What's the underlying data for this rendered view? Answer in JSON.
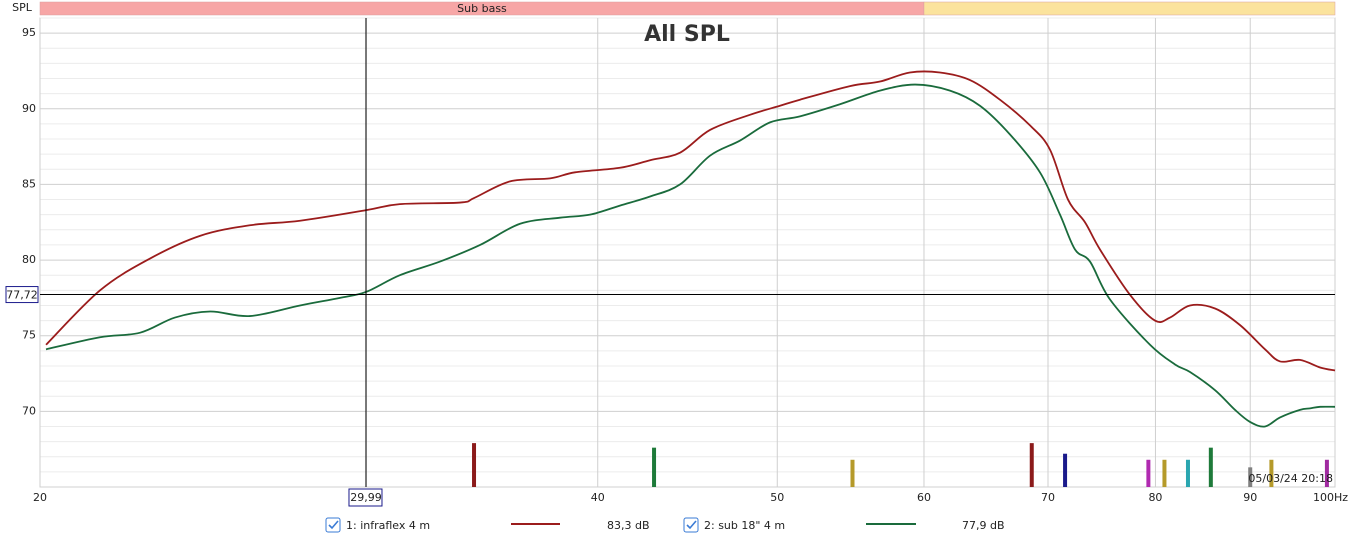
{
  "chart_data": {
    "type": "line",
    "title": "All SPL",
    "y_label": "SPL",
    "x_unit": "Hz",
    "log_x": true,
    "grid": true,
    "xlim": [
      20,
      100
    ],
    "xticks": [
      20,
      40,
      50,
      60,
      70,
      80,
      90,
      100
    ],
    "x_minor_ticks": [
      30
    ],
    "ylim": [
      65,
      96
    ],
    "yticks": [
      70,
      75,
      80,
      85,
      90,
      95
    ],
    "y_minor_ticks": [
      66,
      67,
      68,
      69,
      71,
      72,
      73,
      74,
      76,
      77,
      78,
      79,
      81,
      82,
      83,
      84,
      86,
      87,
      88,
      89,
      91,
      92,
      93,
      94,
      96
    ],
    "bands": [
      {
        "label": "Sub bass",
        "range": [
          20,
          60
        ],
        "color": "#f7a6a6"
      },
      {
        "range": [
          60,
          100
        ],
        "color": "#fbe39d"
      }
    ],
    "cursor": {
      "x": {
        "value": 29.99,
        "label": "29,99"
      },
      "y": {
        "value": 77.72,
        "label": "77,72"
      }
    },
    "series": [
      {
        "name": "1: infraflex 4 m",
        "color": "#9b1c1c",
        "cursor_value": 83.3,
        "cursor_label": "83,3 dB",
        "x": [
          20.15,
          21.55,
          22.93,
          24.4,
          25.96,
          27.63,
          30.0,
          31.28,
          33.71,
          34.3,
          35.87,
          37.7,
          38.89,
          41.12,
          42.69,
          44.31,
          45.99,
          48.33,
          50.17,
          51.43,
          54.73,
          56.81,
          58.96,
          61.2,
          63.53,
          65.94,
          68.45,
          70.17,
          71.76,
          73.29,
          74.67,
          77.51,
          79.95,
          81.46,
          83.51,
          86.15,
          88.87,
          91.67,
          93.4,
          95.74,
          98.16,
          100
        ],
        "values": [
          74.4,
          78.0,
          80.1,
          81.6,
          82.3,
          82.6,
          83.3,
          83.7,
          83.8,
          84.1,
          85.2,
          85.4,
          85.8,
          86.1,
          86.6,
          87.1,
          88.6,
          89.6,
          90.2,
          90.6,
          91.5,
          91.8,
          92.4,
          92.4,
          91.9,
          90.6,
          88.9,
          87.3,
          84.0,
          82.5,
          80.7,
          77.7,
          76.0,
          76.2,
          77.0,
          76.8,
          75.7,
          74.1,
          73.3,
          73.4,
          72.9,
          72.7
        ]
      },
      {
        "name": "2: sub 18\" 4 m",
        "color": "#1a6b3c",
        "cursor_value": 77.9,
        "cursor_label": "77,9 dB",
        "x": [
          20.15,
          21.55,
          22.65,
          23.65,
          24.71,
          25.96,
          27.63,
          29.04,
          30.0,
          31.28,
          32.88,
          34.56,
          36.32,
          38.17,
          39.62,
          41.12,
          42.69,
          44.31,
          45.99,
          47.74,
          49.55,
          51.43,
          54.05,
          56.81,
          59.34,
          61.97,
          64.32,
          66.77,
          69.3,
          71.05,
          72.39,
          73.75,
          75.6,
          79.46,
          81.97,
          83.51,
          86.15,
          88.31,
          89.98,
          91.67,
          93.4,
          95.74,
          96.95,
          98.16,
          100
        ],
        "values": [
          74.1,
          74.9,
          75.2,
          76.2,
          76.6,
          76.3,
          77.0,
          77.5,
          77.9,
          79.0,
          79.9,
          81.0,
          82.4,
          82.8,
          83.0,
          83.6,
          84.2,
          85.0,
          86.9,
          87.9,
          89.1,
          89.5,
          90.3,
          91.2,
          91.6,
          91.2,
          90.2,
          88.3,
          85.8,
          83.0,
          80.7,
          79.9,
          77.4,
          74.4,
          73.1,
          72.6,
          71.4,
          70.1,
          69.3,
          69.0,
          69.6,
          70.1,
          70.2,
          70.3,
          70.3
        ]
      }
    ],
    "markers": [
      {
        "x": 34.3,
        "top": 67.9,
        "color": "#8b1a1a"
      },
      {
        "x": 42.9,
        "top": 67.6,
        "color": "#1e7a3a"
      },
      {
        "x": 54.9,
        "top": 66.8,
        "color": "#b59a2a"
      },
      {
        "x": 68.6,
        "top": 67.9,
        "color": "#8b1a1a"
      },
      {
        "x": 71.5,
        "top": 67.2,
        "color": "#1a1a8b"
      },
      {
        "x": 79.3,
        "top": 66.8,
        "color": "#b02ab0"
      },
      {
        "x": 80.9,
        "top": 66.8,
        "color": "#b59a2a"
      },
      {
        "x": 83.3,
        "top": 66.8,
        "color": "#2aa6b0"
      },
      {
        "x": 85.7,
        "top": 67.6,
        "color": "#1e7a3a"
      },
      {
        "x": 90.0,
        "top": 66.3,
        "color": "#808080"
      },
      {
        "x": 92.4,
        "top": 66.8,
        "color": "#b59a2a"
      },
      {
        "x": 99.0,
        "top": 66.8,
        "color": "#a02aa0"
      }
    ],
    "timestamp": "05/03/24 20:18"
  }
}
